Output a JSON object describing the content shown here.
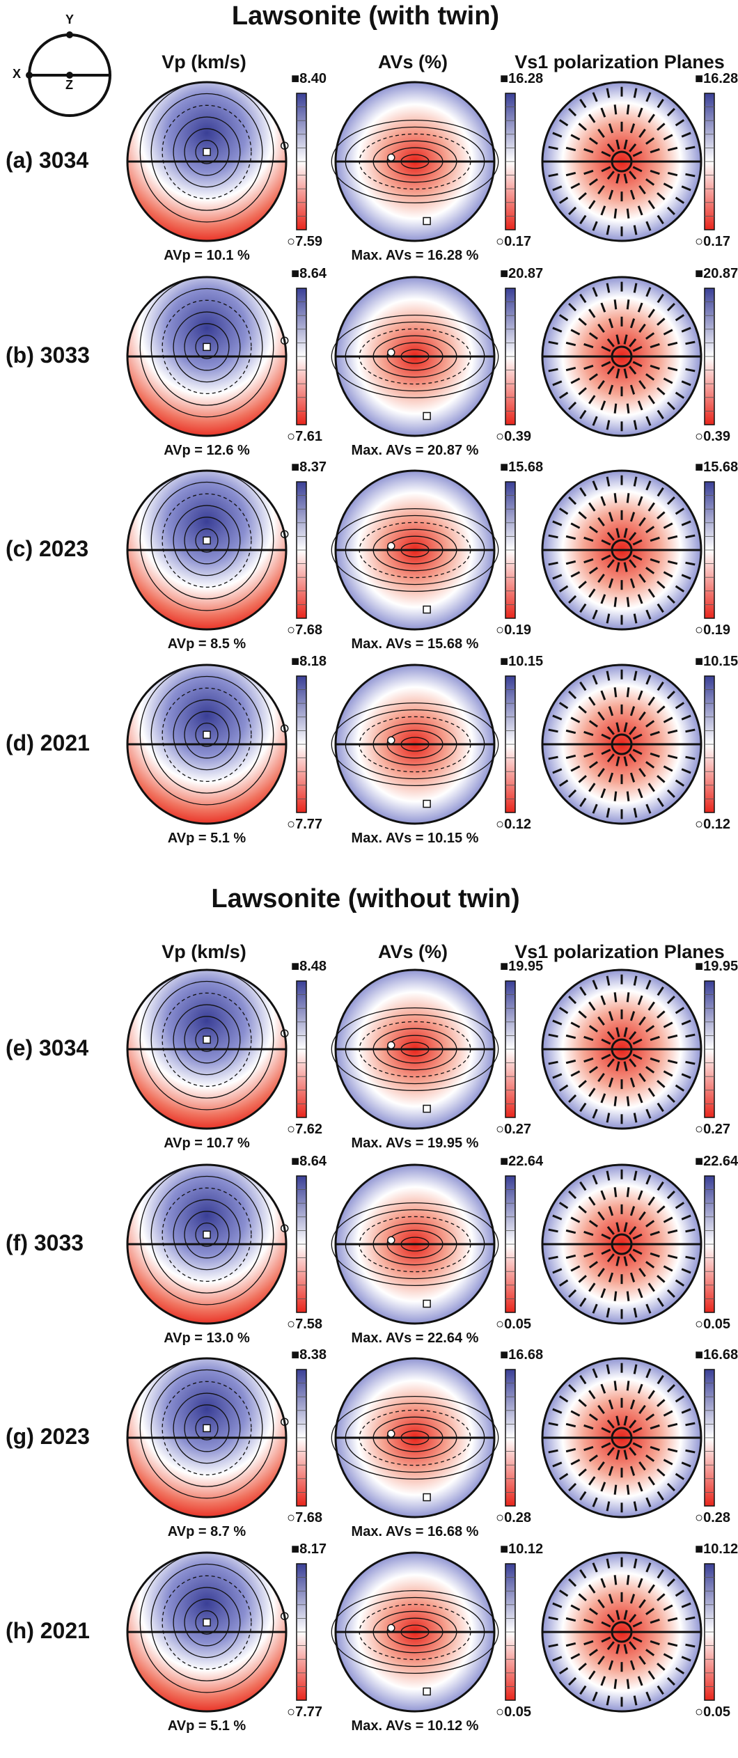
{
  "titles": {
    "with_twin": "Lawsonite (with twin)",
    "without_twin": "Lawsonite (without twin)"
  },
  "column_headers": [
    "Vp (km/s)",
    "AVs (%)",
    "Vs1 polarization Planes"
  ],
  "axis_key": {
    "x": "X",
    "y": "Y",
    "z": "Z"
  },
  "colors": {
    "max_blue": "#3a3f96",
    "min_red": "#e8261c",
    "mid": "#ffffff"
  },
  "rows": [
    {
      "label": "(a) 3034",
      "vp_max": "8.40",
      "vp_min": "7.59",
      "avs_max": "16.28",
      "avs_min": "0.17",
      "vs1_max": "16.28",
      "vs1_min": "0.17",
      "avp_caption": "AVp = 10.1 %",
      "avs_caption": "Max. AVs = 16.28 %"
    },
    {
      "label": "(b) 3033",
      "vp_max": "8.64",
      "vp_min": "7.61",
      "avs_max": "20.87",
      "avs_min": "0.39",
      "vs1_max": "20.87",
      "vs1_min": "0.39",
      "avp_caption": "AVp = 12.6 %",
      "avs_caption": "Max. AVs = 20.87 %"
    },
    {
      "label": "(c) 2023",
      "vp_max": "8.37",
      "vp_min": "7.68",
      "avs_max": "15.68",
      "avs_min": "0.19",
      "vs1_max": "15.68",
      "vs1_min": "0.19",
      "avp_caption": "AVp = 8.5 %",
      "avs_caption": "Max. AVs = 15.68 %"
    },
    {
      "label": "(d) 2021",
      "vp_max": "8.18",
      "vp_min": "7.77",
      "avs_max": "10.15",
      "avs_min": "0.12",
      "vs1_max": "10.15",
      "vs1_min": "0.12",
      "avp_caption": "AVp = 5.1 %",
      "avs_caption": "Max. AVs = 10.15 %"
    },
    {
      "label": "(e) 3034",
      "vp_max": "8.48",
      "vp_min": "7.62",
      "avs_max": "19.95",
      "avs_min": "0.27",
      "vs1_max": "19.95",
      "vs1_min": "0.27",
      "avp_caption": "AVp = 10.7 %",
      "avs_caption": "Max. AVs = 19.95 %"
    },
    {
      "label": "(f) 3033",
      "vp_max": "8.64",
      "vp_min": "7.58",
      "avs_max": "22.64",
      "avs_min": "0.05",
      "vs1_max": "22.64",
      "vs1_min": "0.05",
      "avp_caption": "AVp = 13.0 %",
      "avs_caption": "Max. AVs = 22.64 %"
    },
    {
      "label": "(g) 2023",
      "vp_max": "8.38",
      "vp_min": "7.68",
      "avs_max": "16.68",
      "avs_min": "0.28",
      "vs1_max": "16.68",
      "vs1_min": "0.28",
      "avp_caption": "AVp = 8.7 %",
      "avs_caption": "Max. AVs = 16.68 %"
    },
    {
      "label": "(h) 2021",
      "vp_max": "8.17",
      "vp_min": "7.77",
      "avs_max": "10.12",
      "avs_min": "0.05",
      "vs1_max": "10.12",
      "vs1_min": "0.05",
      "avp_caption": "AVp = 5.1 %",
      "avs_caption": "Max. AVs = 10.12 %"
    }
  ]
}
